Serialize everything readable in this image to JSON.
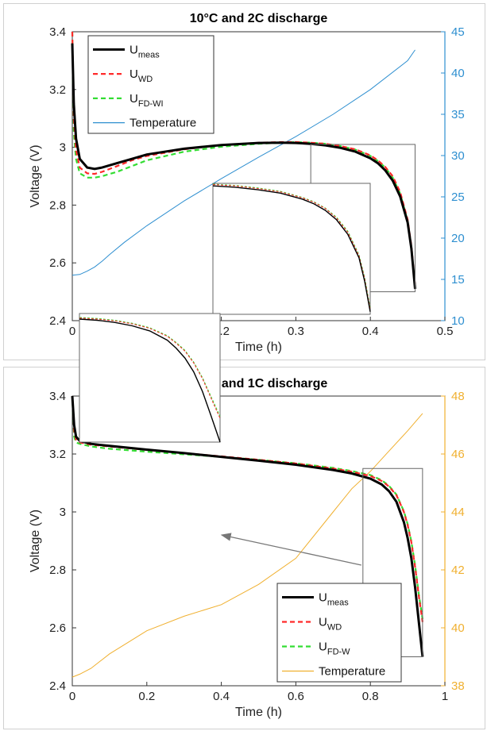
{
  "colors": {
    "measured": "#000000",
    "wd": "#ff2a2a",
    "fd": "#33dd33",
    "temp_top": "#2e8fd0",
    "temp_bottom": "#f0b030",
    "axis": "#333333",
    "zoom_box": "#666666"
  },
  "chart_data": [
    {
      "type": "line",
      "title": "10°C and 2C discharge",
      "xlabel": "Time (h)",
      "ylabel": "Voltage (V)",
      "y2label": "",
      "xlim": [
        0,
        0.5
      ],
      "ylim": [
        2.4,
        3.4
      ],
      "y2lim": [
        10,
        45
      ],
      "xticks": [
        "0",
        "0.1",
        "0.2",
        "0.3",
        "0.4",
        "0.5"
      ],
      "yticks": [
        "2.4",
        "2.6",
        "2.8",
        "3",
        "3.2",
        "3.4"
      ],
      "y2ticks": [
        "10",
        "15",
        "20",
        "25",
        "30",
        "35",
        "40",
        "45"
      ],
      "legend_position": "top-left",
      "legend": [
        {
          "main": "U",
          "sub": "meas"
        },
        {
          "main": "U",
          "sub": "WD"
        },
        {
          "main": "U",
          "sub": "FD-WI"
        },
        {
          "main": "Temperature",
          "sub": ""
        }
      ],
      "zoom_window": {
        "x": [
          0.32,
          0.46
        ],
        "y": [
          2.5,
          3.01
        ]
      },
      "inset_position": "center-bottom",
      "series": [
        {
          "name": "U_meas",
          "axis": "left",
          "style": "solid",
          "x": [
            0,
            0.002,
            0.005,
            0.01,
            0.02,
            0.03,
            0.04,
            0.06,
            0.08,
            0.1,
            0.15,
            0.2,
            0.25,
            0.28,
            0.3,
            0.32,
            0.34,
            0.36,
            0.38,
            0.4,
            0.41,
            0.42,
            0.43,
            0.44,
            0.45,
            0.455,
            0.46
          ],
          "y": [
            3.36,
            3.15,
            3.03,
            2.96,
            2.93,
            2.925,
            2.93,
            2.945,
            2.96,
            2.975,
            2.995,
            3.008,
            3.015,
            3.016,
            3.015,
            3.012,
            3.007,
            2.998,
            2.985,
            2.962,
            2.945,
            2.92,
            2.885,
            2.83,
            2.74,
            2.65,
            2.51
          ]
        },
        {
          "name": "U_WD",
          "axis": "left",
          "style": "dashed",
          "x": [
            0,
            0.002,
            0.005,
            0.01,
            0.02,
            0.03,
            0.04,
            0.06,
            0.08,
            0.1,
            0.15,
            0.2,
            0.25,
            0.28,
            0.3,
            0.32,
            0.34,
            0.36,
            0.38,
            0.4,
            0.41,
            0.42,
            0.43,
            0.44,
            0.45,
            0.455,
            0.46
          ],
          "y": [
            3.4,
            3.1,
            2.99,
            2.93,
            2.91,
            2.908,
            2.915,
            2.935,
            2.955,
            2.97,
            2.993,
            3.008,
            3.016,
            3.018,
            3.018,
            3.016,
            3.012,
            3.004,
            2.993,
            2.972,
            2.955,
            2.932,
            2.9,
            2.845,
            2.75,
            2.66,
            2.52
          ]
        },
        {
          "name": "U_FD-WI",
          "axis": "left",
          "style": "dashed",
          "x": [
            0,
            0.002,
            0.005,
            0.01,
            0.02,
            0.03,
            0.04,
            0.06,
            0.08,
            0.1,
            0.15,
            0.2,
            0.25,
            0.28,
            0.3,
            0.32,
            0.34,
            0.36,
            0.38,
            0.4,
            0.41,
            0.42,
            0.43,
            0.44,
            0.45,
            0.455,
            0.46
          ],
          "y": [
            3.4,
            3.05,
            2.96,
            2.91,
            2.895,
            2.895,
            2.9,
            2.915,
            2.935,
            2.955,
            2.985,
            3.002,
            3.012,
            3.016,
            3.018,
            3.016,
            3.012,
            3.004,
            2.992,
            2.97,
            2.953,
            2.93,
            2.895,
            2.84,
            2.745,
            2.655,
            2.52
          ]
        },
        {
          "name": "Temperature",
          "axis": "right",
          "style": "thin",
          "x": [
            0,
            0.01,
            0.02,
            0.03,
            0.04,
            0.05,
            0.07,
            0.1,
            0.15,
            0.2,
            0.25,
            0.3,
            0.35,
            0.4,
            0.45,
            0.46
          ],
          "y": [
            15.5,
            15.6,
            16,
            16.5,
            17.2,
            18,
            19.5,
            21.5,
            24.5,
            27.2,
            29.8,
            32.3,
            35,
            38,
            41.5,
            42.8
          ]
        }
      ],
      "inset": {
        "xlim": [
          0.32,
          0.46
        ],
        "ylim": [
          2.5,
          3.01
        ],
        "series": [
          {
            "name": "U_meas",
            "x": [
              0.32,
              0.34,
              0.36,
              0.38,
              0.4,
              0.41,
              0.42,
              0.43,
              0.44,
              0.45,
              0.455,
              0.46
            ],
            "y": [
              3.0,
              2.995,
              2.985,
              2.972,
              2.948,
              2.93,
              2.905,
              2.868,
              2.812,
              2.72,
              2.63,
              2.51
            ]
          },
          {
            "name": "U_WD",
            "x": [
              0.32,
              0.34,
              0.36,
              0.38,
              0.4,
              0.41,
              0.42,
              0.43,
              0.44,
              0.45,
              0.455,
              0.46
            ],
            "y": [
              3.005,
              3.0,
              2.99,
              2.977,
              2.953,
              2.936,
              2.912,
              2.875,
              2.82,
              2.728,
              2.64,
              2.52
            ]
          },
          {
            "name": "U_FD-WI",
            "x": [
              0.32,
              0.34,
              0.36,
              0.38,
              0.4,
              0.41,
              0.42,
              0.43,
              0.44,
              0.45,
              0.455,
              0.46
            ],
            "y": [
              3.007,
              3.002,
              2.992,
              2.979,
              2.955,
              2.938,
              2.914,
              2.878,
              2.824,
              2.732,
              2.645,
              2.525
            ]
          }
        ]
      }
    },
    {
      "type": "line",
      "title": "38°C and 1C discharge",
      "xlabel": "Time (h)",
      "ylabel": "Voltage (V)",
      "y2label": "",
      "xlim": [
        0,
        1
      ],
      "ylim": [
        2.4,
        3.4
      ],
      "y2lim": [
        38,
        48
      ],
      "xticks": [
        "0",
        "0.2",
        "0.4",
        "0.6",
        "0.8",
        "1"
      ],
      "yticks": [
        "2.4",
        "2.6",
        "2.8",
        "3",
        "3.2",
        "3.4"
      ],
      "y2ticks": [
        "38",
        "40",
        "42",
        "44",
        "46",
        "48"
      ],
      "legend_position": "bottom-right",
      "legend": [
        {
          "main": "U",
          "sub": "meas"
        },
        {
          "main": "U",
          "sub": "WD"
        },
        {
          "main": "U",
          "sub": "FD-W"
        },
        {
          "main": "Temperature",
          "sub": ""
        }
      ],
      "zoom_window": {
        "x": [
          0.78,
          0.94
        ],
        "y": [
          2.5,
          3.15
        ]
      },
      "inset_position": "left-middle",
      "series": [
        {
          "name": "U_meas",
          "axis": "left",
          "style": "solid",
          "x": [
            0,
            0.005,
            0.01,
            0.02,
            0.05,
            0.1,
            0.2,
            0.3,
            0.4,
            0.5,
            0.6,
            0.7,
            0.75,
            0.8,
            0.83,
            0.85,
            0.87,
            0.89,
            0.9,
            0.91,
            0.92,
            0.93,
            0.94
          ],
          "y": [
            3.4,
            3.3,
            3.26,
            3.245,
            3.235,
            3.228,
            3.215,
            3.203,
            3.19,
            3.177,
            3.163,
            3.145,
            3.133,
            3.115,
            3.095,
            3.072,
            3.035,
            2.965,
            2.91,
            2.84,
            2.74,
            2.62,
            2.5
          ]
        },
        {
          "name": "U_WD",
          "axis": "left",
          "style": "dashed",
          "x": [
            0,
            0.005,
            0.01,
            0.02,
            0.05,
            0.1,
            0.2,
            0.3,
            0.4,
            0.5,
            0.6,
            0.7,
            0.75,
            0.8,
            0.83,
            0.85,
            0.87,
            0.89,
            0.9,
            0.91,
            0.92,
            0.93,
            0.94
          ],
          "y": [
            3.4,
            3.28,
            3.25,
            3.24,
            3.232,
            3.226,
            3.214,
            3.203,
            3.192,
            3.18,
            3.167,
            3.15,
            3.139,
            3.124,
            3.107,
            3.088,
            3.058,
            3.0,
            2.955,
            2.895,
            2.81,
            2.71,
            2.62
          ]
        },
        {
          "name": "U_FD-W",
          "axis": "left",
          "style": "dashed",
          "x": [
            0,
            0.005,
            0.01,
            0.02,
            0.05,
            0.1,
            0.2,
            0.3,
            0.4,
            0.5,
            0.6,
            0.7,
            0.75,
            0.8,
            0.83,
            0.85,
            0.87,
            0.89,
            0.9,
            0.91,
            0.92,
            0.93,
            0.94
          ],
          "y": [
            3.4,
            3.26,
            3.24,
            3.235,
            3.226,
            3.218,
            3.208,
            3.199,
            3.19,
            3.18,
            3.168,
            3.152,
            3.141,
            3.127,
            3.11,
            3.09,
            3.06,
            3.002,
            2.958,
            2.898,
            2.815,
            2.715,
            2.63
          ]
        },
        {
          "name": "Temperature",
          "axis": "right",
          "style": "thin",
          "x": [
            0,
            0.02,
            0.05,
            0.1,
            0.15,
            0.2,
            0.3,
            0.4,
            0.5,
            0.6,
            0.7,
            0.75,
            0.8,
            0.85,
            0.9,
            0.94
          ],
          "y": [
            38.3,
            38.4,
            38.6,
            39.1,
            39.5,
            39.9,
            40.4,
            40.8,
            41.5,
            42.4,
            44.0,
            44.8,
            45.4,
            46.1,
            46.8,
            47.4
          ]
        }
      ],
      "inset": {
        "xlim": [
          0.78,
          0.94
        ],
        "ylim": [
          2.5,
          3.15
        ],
        "series": [
          {
            "name": "U_meas",
            "x": [
              0.78,
              0.8,
              0.82,
              0.84,
              0.86,
              0.88,
              0.89,
              0.9,
              0.91,
              0.92,
              0.93,
              0.94
            ],
            "y": [
              3.122,
              3.116,
              3.105,
              3.088,
              3.062,
              3.015,
              2.975,
              2.925,
              2.855,
              2.755,
              2.63,
              2.5
            ]
          },
          {
            "name": "U_WD",
            "x": [
              0.78,
              0.8,
              0.82,
              0.84,
              0.86,
              0.88,
              0.89,
              0.9,
              0.91,
              0.92,
              0.93,
              0.94
            ],
            "y": [
              3.127,
              3.122,
              3.113,
              3.098,
              3.075,
              3.035,
              3.0,
              2.96,
              2.9,
              2.82,
              2.72,
              2.62
            ]
          },
          {
            "name": "U_FD-W",
            "x": [
              0.78,
              0.8,
              0.82,
              0.84,
              0.86,
              0.88,
              0.89,
              0.9,
              0.91,
              0.92,
              0.93,
              0.94
            ],
            "y": [
              3.13,
              3.125,
              3.116,
              3.101,
              3.078,
              3.038,
              3.004,
              2.964,
              2.905,
              2.826,
              2.728,
              2.63
            ]
          }
        ]
      }
    }
  ]
}
